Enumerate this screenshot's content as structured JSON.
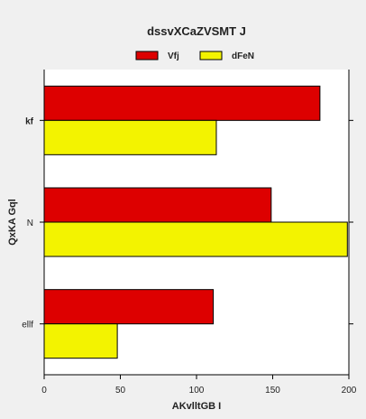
{
  "chart_data": {
    "type": "bar",
    "orientation": "horizontal",
    "title": "dssvXCaZVSMT J",
    "xlabel": "AKvlltGB  I",
    "ylabel": "QxKA Gql",
    "categories": [
      "kf",
      "N",
      "ellf"
    ],
    "series": [
      {
        "name": "Vfj",
        "color": "#dd0000",
        "values": [
          181,
          149,
          111
        ]
      },
      {
        "name": "dFeN",
        "color": "#f3f300",
        "values": [
          113,
          199,
          48
        ]
      }
    ],
    "xlim": [
      0,
      200
    ],
    "xticks": [
      "0",
      "50",
      "100",
      "150",
      "200"
    ],
    "grid": false,
    "legend_position": "top"
  },
  "colors": {
    "background": "#f0f0f0",
    "plot_background": "#ffffff",
    "edge": "#000000"
  }
}
